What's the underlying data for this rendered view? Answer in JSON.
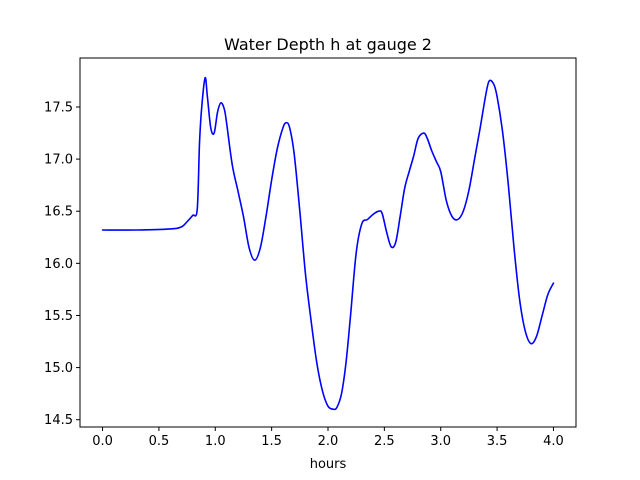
{
  "chart_data": {
    "type": "line",
    "title": "Water Depth h at gauge 2",
    "xlabel": "hours",
    "ylabel": "",
    "xlim": [
      -0.2,
      4.2
    ],
    "ylim": [
      14.43,
      17.97
    ],
    "xticks": [
      0.0,
      0.5,
      1.0,
      1.5,
      2.0,
      2.5,
      3.0,
      3.5,
      4.0
    ],
    "xtick_labels": [
      "0.0",
      "0.5",
      "1.0",
      "1.5",
      "2.0",
      "2.5",
      "3.0",
      "3.5",
      "4.0"
    ],
    "yticks": [
      14.5,
      15.0,
      15.5,
      16.0,
      16.5,
      17.0,
      17.5
    ],
    "ytick_labels": [
      "14.5",
      "15.0",
      "15.5",
      "16.0",
      "16.5",
      "17.0",
      "17.5"
    ],
    "grid": false,
    "series": [
      {
        "color": "#0000ff",
        "x": [
          0.0,
          0.3,
          0.6,
          0.7,
          0.75,
          0.8,
          0.84,
          0.86,
          0.88,
          0.91,
          0.93,
          0.96,
          0.99,
          1.02,
          1.05,
          1.08,
          1.1,
          1.15,
          1.2,
          1.25,
          1.3,
          1.35,
          1.4,
          1.45,
          1.5,
          1.55,
          1.6,
          1.63,
          1.66,
          1.7,
          1.75,
          1.8,
          1.85,
          1.9,
          1.95,
          2.0,
          2.05,
          2.08,
          2.12,
          2.16,
          2.2,
          2.25,
          2.3,
          2.35,
          2.4,
          2.45,
          2.48,
          2.52,
          2.56,
          2.6,
          2.64,
          2.68,
          2.72,
          2.76,
          2.8,
          2.85,
          2.88,
          2.92,
          2.96,
          3.0,
          3.05,
          3.1,
          3.15,
          3.2,
          3.25,
          3.3,
          3.35,
          3.4,
          3.43,
          3.47,
          3.5,
          3.55,
          3.6,
          3.65,
          3.7,
          3.75,
          3.8,
          3.85,
          3.9,
          3.95,
          4.0
        ],
        "y": [
          16.32,
          16.32,
          16.33,
          16.35,
          16.4,
          16.46,
          16.52,
          17.15,
          17.5,
          17.78,
          17.6,
          17.3,
          17.25,
          17.45,
          17.54,
          17.48,
          17.35,
          16.95,
          16.7,
          16.45,
          16.15,
          16.03,
          16.15,
          16.45,
          16.8,
          17.1,
          17.3,
          17.35,
          17.3,
          17.05,
          16.5,
          15.9,
          15.45,
          15.05,
          14.78,
          14.63,
          14.6,
          14.62,
          14.75,
          15.05,
          15.5,
          16.1,
          16.38,
          16.42,
          16.47,
          16.5,
          16.48,
          16.3,
          16.16,
          16.2,
          16.45,
          16.72,
          16.88,
          17.03,
          17.2,
          17.25,
          17.2,
          17.08,
          16.98,
          16.88,
          16.6,
          16.45,
          16.42,
          16.5,
          16.7,
          17.0,
          17.3,
          17.62,
          17.75,
          17.72,
          17.6,
          17.25,
          16.75,
          16.15,
          15.65,
          15.35,
          15.23,
          15.3,
          15.5,
          15.7,
          15.81
        ]
      }
    ]
  }
}
